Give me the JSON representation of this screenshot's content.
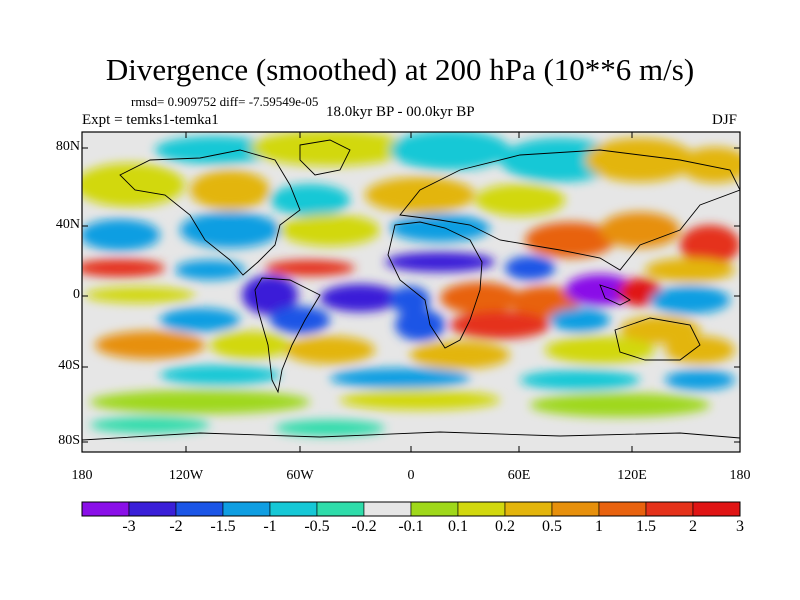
{
  "header": {
    "title": "Divergence (smoothed) at 200 hPa (10**6 m/s)",
    "stats": "rmsd= 0.909752 diff= -7.59549e-05",
    "experiment": "Expt = temks1-temka1",
    "period": "18.0kyr BP - 00.0kyr BP",
    "season": "DJF"
  },
  "map": {
    "lat_ticks": [
      "80N",
      "40N",
      "0",
      "40S",
      "80S"
    ],
    "lon_ticks": [
      "180",
      "120W",
      "60W",
      "0",
      "60E",
      "120E",
      "180"
    ]
  },
  "colorbar": {
    "colors": [
      "#8a0fe8",
      "#3a1fd8",
      "#1b55e6",
      "#0f9ee2",
      "#16c8d6",
      "#2fdcaa",
      "#e6e6e6",
      "#9fd81a",
      "#d2d80e",
      "#e3b50c",
      "#e7900c",
      "#e8620e",
      "#e5321a",
      "#e01414"
    ],
    "labels": [
      "-3",
      "-2",
      "-1.5",
      "-1",
      "-0.5",
      "-0.2",
      "-0.1",
      "0.1",
      "0.2",
      "0.5",
      "1",
      "1.5",
      "2",
      "3"
    ]
  }
}
